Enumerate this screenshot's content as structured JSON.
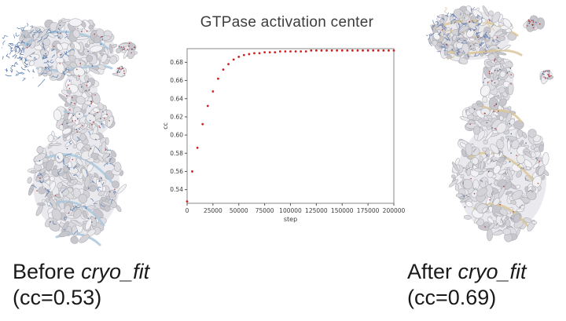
{
  "slide": {
    "captions": {
      "before": {
        "prefix": "Before ",
        "program": "cryo_fit",
        "cc_line": "(cc=0.53)"
      },
      "after": {
        "prefix": "After ",
        "program": "cryo_fit",
        "cc_line": "(cc=0.69)"
      }
    }
  },
  "chart_data": {
    "type": "scatter",
    "title": "GTPase activation center",
    "xlabel": "step",
    "ylabel": "cc",
    "xlim": [
      0,
      200000
    ],
    "ylim": [
      0.525,
      0.695
    ],
    "xticks": [
      0,
      25000,
      50000,
      75000,
      100000,
      125000,
      150000,
      175000,
      200000
    ],
    "yticks": [
      0.54,
      0.56,
      0.58,
      0.6,
      0.62,
      0.64,
      0.66,
      0.68
    ],
    "grid": false,
    "legend": "none",
    "marker_color": "#cc2222",
    "series": [
      {
        "name": "cc",
        "x": [
          0,
          5000,
          10000,
          15000,
          20000,
          25000,
          30000,
          35000,
          40000,
          45000,
          50000,
          55000,
          60000,
          65000,
          70000,
          75000,
          80000,
          85000,
          90000,
          95000,
          100000,
          105000,
          110000,
          115000,
          120000,
          125000,
          130000,
          135000,
          140000,
          145000,
          150000,
          155000,
          160000,
          165000,
          170000,
          175000,
          180000,
          185000,
          190000,
          195000,
          200000
        ],
        "y": [
          0.527,
          0.56,
          0.586,
          0.612,
          0.632,
          0.648,
          0.662,
          0.672,
          0.678,
          0.683,
          0.686,
          0.688,
          0.689,
          0.69,
          0.69,
          0.691,
          0.691,
          0.691,
          0.692,
          0.692,
          0.692,
          0.692,
          0.692,
          0.692,
          0.693,
          0.693,
          0.693,
          0.693,
          0.693,
          0.693,
          0.693,
          0.693,
          0.693,
          0.693,
          0.693,
          0.693,
          0.693,
          0.693,
          0.693,
          0.693,
          0.693
        ]
      }
    ]
  },
  "molecules": {
    "before": {
      "name": "cryo-EM map before fitting",
      "stick_color": "#5d7fae",
      "dark_stick_color": "#48689c",
      "ribbon_color": "#aac7dc"
    },
    "after": {
      "name": "cryo-EM map after fitting",
      "stick_color": "#6b7fae",
      "dark_stick_color": "#8a8a95",
      "ribbon_color": "#dcc79a"
    }
  }
}
